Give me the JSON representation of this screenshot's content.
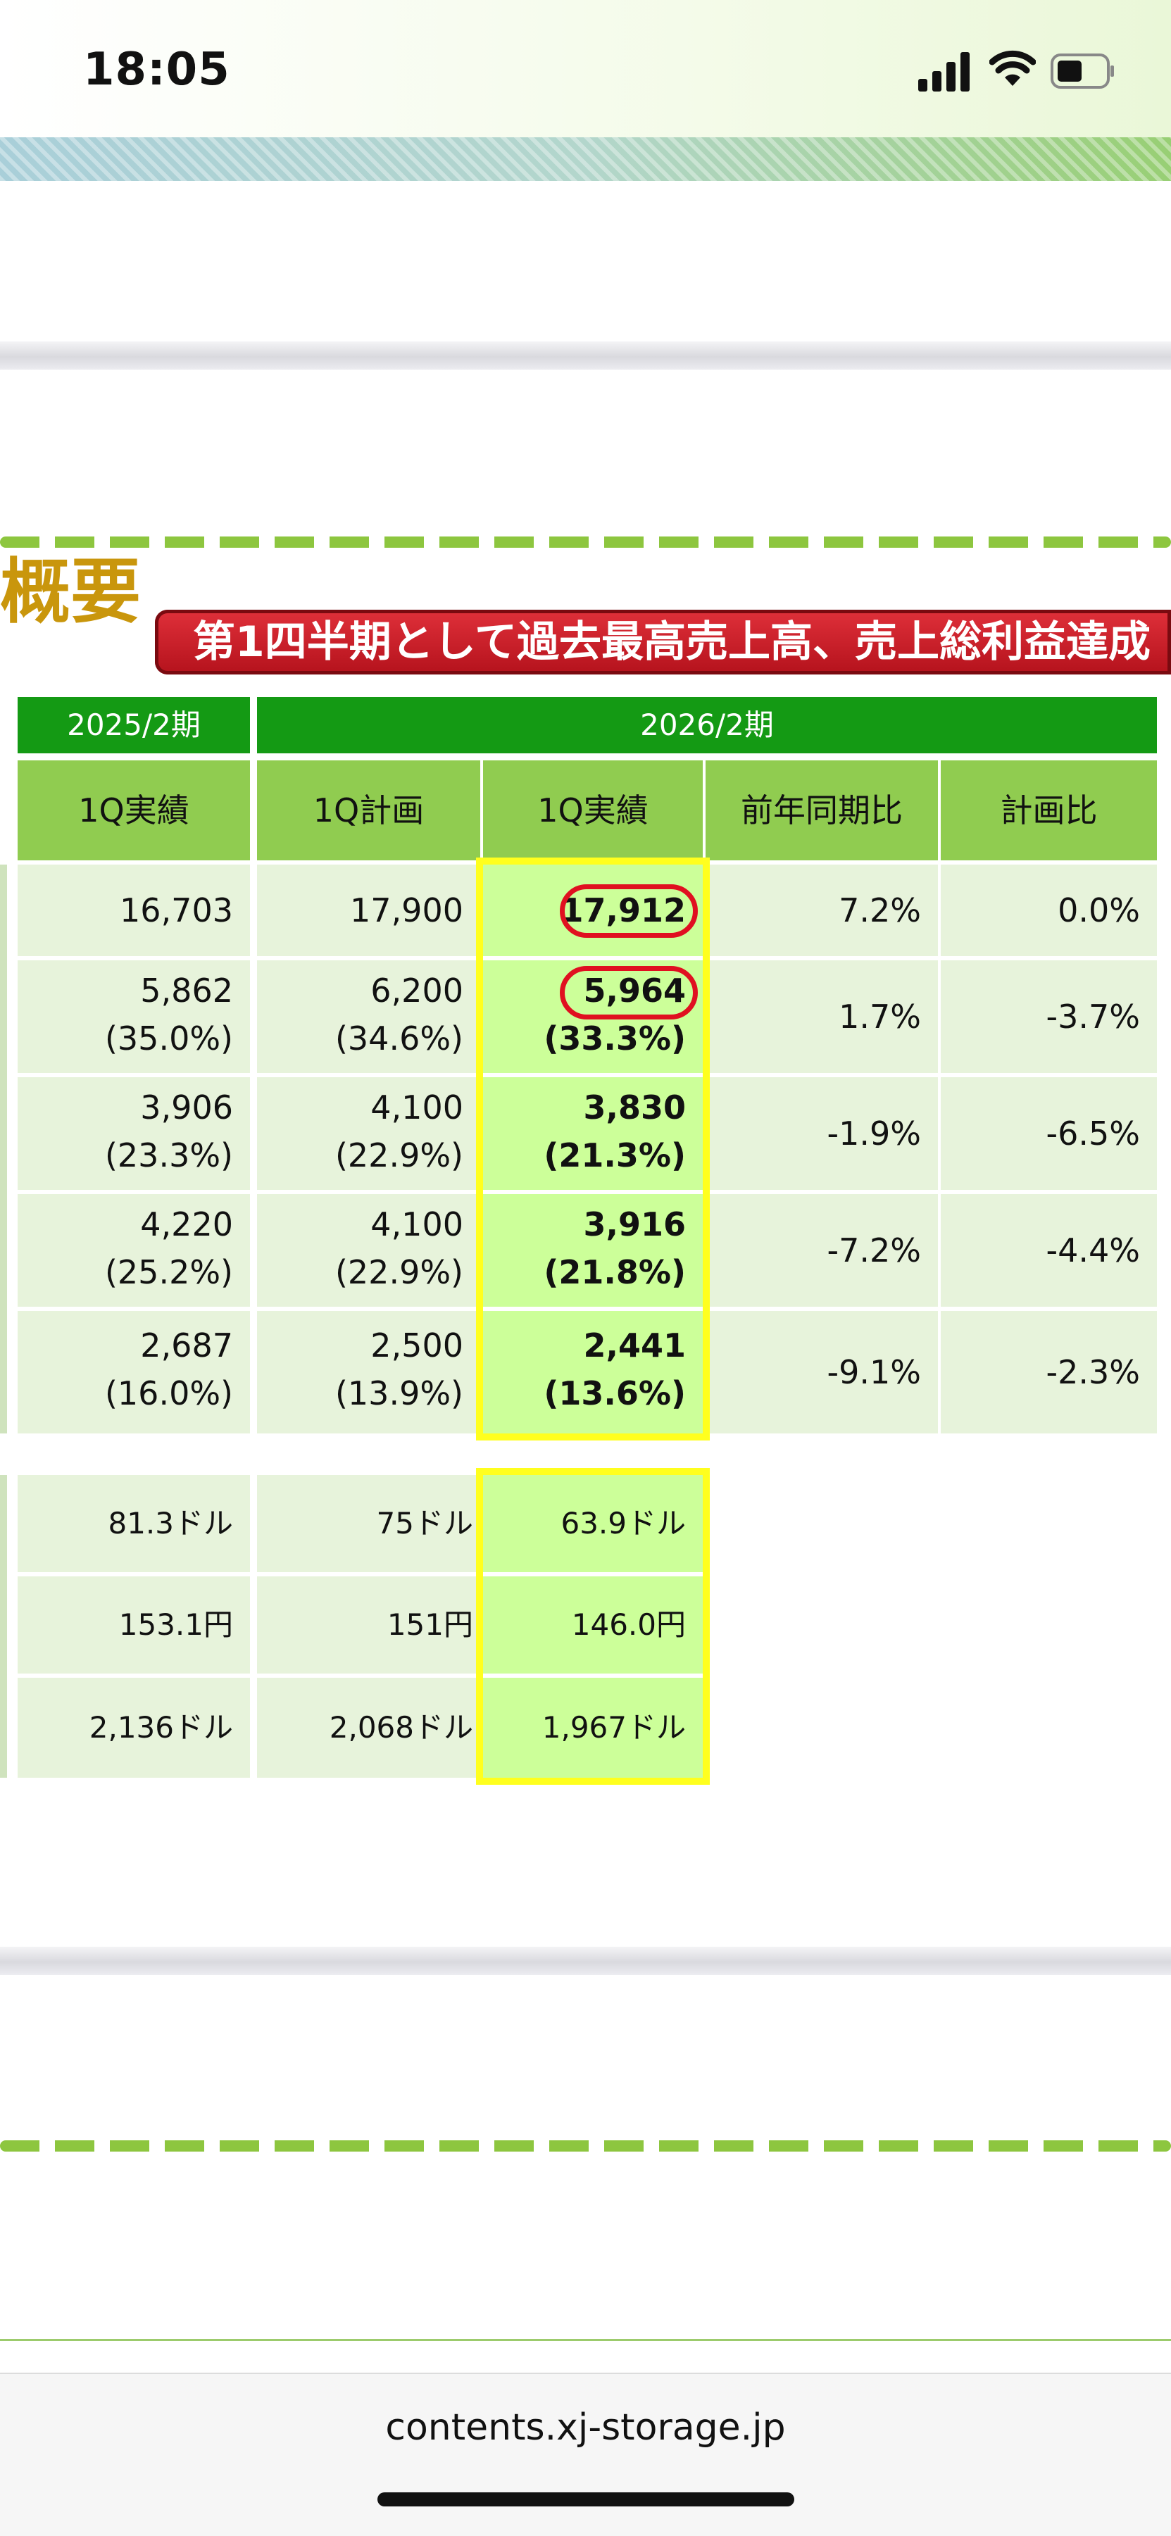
{
  "status_bar": {
    "time": "18:05"
  },
  "page": {
    "heading": "概要",
    "banner": "第1四半期として過去最高売上高、売上総利益達成"
  },
  "table": {
    "group_headers": {
      "prev": "2025/2期",
      "curr": "2026/2期"
    },
    "columns": [
      "1Q実績",
      "1Q計画",
      "1Q実績",
      "前年同期比",
      "計画比"
    ],
    "rows": [
      {
        "prev": [
          "16,703"
        ],
        "plan": [
          "17,900"
        ],
        "actual": [
          "17,912"
        ],
        "yoy": "7.2%",
        "vs_plan": "0.0%"
      },
      {
        "prev": [
          "5,862",
          "(35.0%)"
        ],
        "plan": [
          "6,200",
          "(34.6%)"
        ],
        "actual": [
          "5,964",
          "(33.3%)"
        ],
        "yoy": "1.7%",
        "vs_plan": "-3.7%"
      },
      {
        "prev": [
          "3,906",
          "(23.3%)"
        ],
        "plan": [
          "4,100",
          "(22.9%)"
        ],
        "actual": [
          "3,830",
          "(21.3%)"
        ],
        "yoy": "-1.9%",
        "vs_plan": "-6.5%"
      },
      {
        "prev": [
          "4,220",
          "(25.2%)"
        ],
        "plan": [
          "4,100",
          "(22.9%)"
        ],
        "actual": [
          "3,916",
          "(21.8%)"
        ],
        "yoy": "-7.2%",
        "vs_plan": "-4.4%"
      },
      {
        "prev": [
          "2,687",
          "(16.0%)"
        ],
        "plan": [
          "2,500",
          "(13.9%)"
        ],
        "actual": [
          "2,441",
          "(13.6%)"
        ],
        "yoy": "-9.1%",
        "vs_plan": "-2.3%"
      }
    ],
    "rows2": [
      {
        "prev": "81.3ドル",
        "plan": "75ドル",
        "actual": "63.9ドル"
      },
      {
        "prev": "153.1円",
        "plan": "151円",
        "actual": "146.0円"
      },
      {
        "prev": "2,136ドル",
        "plan": "2,068ドル",
        "actual": "1,967ドル"
      }
    ]
  },
  "browser": {
    "url": "contents.xj-storage.jp"
  },
  "colors": {
    "header_green": "#149a14",
    "subheader_green": "#90cc50",
    "highlight_yellow": "#ffff1e",
    "circle_red": "#e01020"
  }
}
